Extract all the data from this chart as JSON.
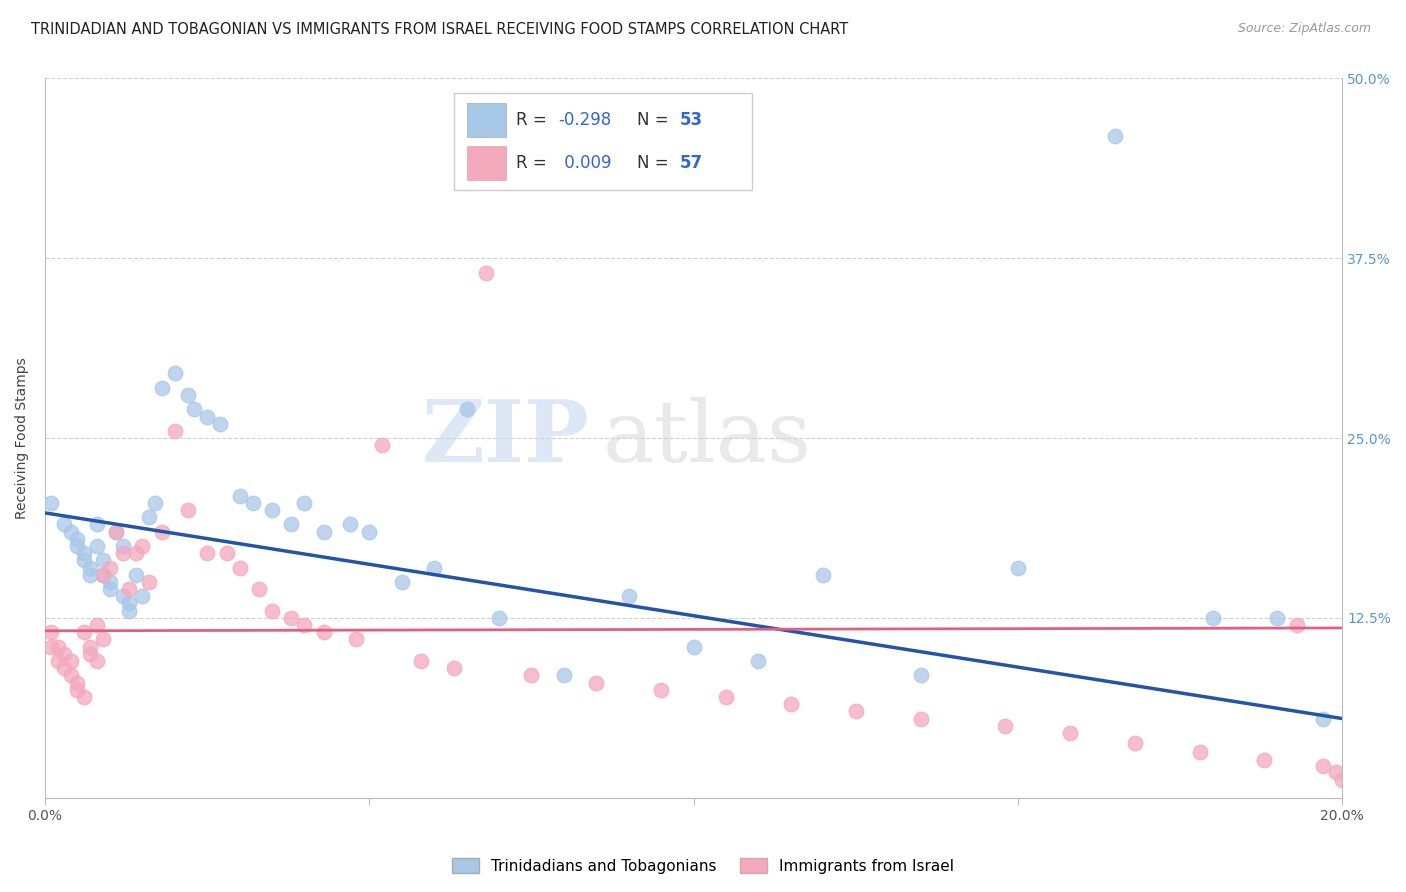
{
  "title": "TRINIDADIAN AND TOBAGONIAN VS IMMIGRANTS FROM ISRAEL RECEIVING FOOD STAMPS CORRELATION CHART",
  "source": "Source: ZipAtlas.com",
  "ylabel": "Receiving Food Stamps",
  "xlim": [
    0.0,
    0.2
  ],
  "ylim": [
    0.0,
    0.5
  ],
  "xticks": [
    0.0,
    0.05,
    0.1,
    0.15,
    0.2
  ],
  "xticklabels": [
    "0.0%",
    "",
    "",
    "",
    "20.0%"
  ],
  "yticks": [
    0.0,
    0.125,
    0.25,
    0.375,
    0.5
  ],
  "yticklabels_right": [
    "",
    "12.5%",
    "25.0%",
    "37.5%",
    "50.0%"
  ],
  "blue_color": "#a8c8e8",
  "pink_color": "#f4a8bc",
  "line_blue": "#2255aa",
  "line_pink": "#e06080",
  "watermark_zip": "ZIP",
  "watermark_atlas": "atlas",
  "blue_scatter_x": [
    0.001,
    0.003,
    0.004,
    0.005,
    0.005,
    0.006,
    0.006,
    0.007,
    0.007,
    0.008,
    0.008,
    0.009,
    0.009,
    0.01,
    0.01,
    0.011,
    0.012,
    0.012,
    0.013,
    0.013,
    0.014,
    0.015,
    0.016,
    0.017,
    0.018,
    0.02,
    0.022,
    0.023,
    0.025,
    0.027,
    0.03,
    0.032,
    0.035,
    0.038,
    0.04,
    0.043,
    0.047,
    0.05,
    0.055,
    0.06,
    0.065,
    0.07,
    0.08,
    0.09,
    0.1,
    0.11,
    0.12,
    0.135,
    0.15,
    0.165,
    0.18,
    0.19,
    0.197
  ],
  "blue_scatter_y": [
    0.205,
    0.19,
    0.185,
    0.18,
    0.175,
    0.17,
    0.165,
    0.16,
    0.155,
    0.19,
    0.175,
    0.165,
    0.155,
    0.15,
    0.145,
    0.185,
    0.175,
    0.14,
    0.135,
    0.13,
    0.155,
    0.14,
    0.195,
    0.205,
    0.285,
    0.295,
    0.28,
    0.27,
    0.265,
    0.26,
    0.21,
    0.205,
    0.2,
    0.19,
    0.205,
    0.185,
    0.19,
    0.185,
    0.15,
    0.16,
    0.27,
    0.125,
    0.085,
    0.14,
    0.105,
    0.095,
    0.155,
    0.085,
    0.16,
    0.46,
    0.125,
    0.125,
    0.055
  ],
  "pink_scatter_x": [
    0.001,
    0.001,
    0.002,
    0.002,
    0.003,
    0.003,
    0.004,
    0.004,
    0.005,
    0.005,
    0.006,
    0.006,
    0.007,
    0.007,
    0.008,
    0.008,
    0.009,
    0.009,
    0.01,
    0.011,
    0.012,
    0.013,
    0.014,
    0.015,
    0.016,
    0.018,
    0.02,
    0.022,
    0.025,
    0.028,
    0.03,
    0.033,
    0.035,
    0.038,
    0.04,
    0.043,
    0.048,
    0.052,
    0.058,
    0.063,
    0.068,
    0.075,
    0.085,
    0.095,
    0.105,
    0.115,
    0.125,
    0.135,
    0.148,
    0.158,
    0.168,
    0.178,
    0.188,
    0.193,
    0.197,
    0.199,
    0.2
  ],
  "pink_scatter_y": [
    0.115,
    0.105,
    0.105,
    0.095,
    0.1,
    0.09,
    0.095,
    0.085,
    0.08,
    0.075,
    0.07,
    0.115,
    0.105,
    0.1,
    0.095,
    0.12,
    0.11,
    0.155,
    0.16,
    0.185,
    0.17,
    0.145,
    0.17,
    0.175,
    0.15,
    0.185,
    0.255,
    0.2,
    0.17,
    0.17,
    0.16,
    0.145,
    0.13,
    0.125,
    0.12,
    0.115,
    0.11,
    0.245,
    0.095,
    0.09,
    0.365,
    0.085,
    0.08,
    0.075,
    0.07,
    0.065,
    0.06,
    0.055,
    0.05,
    0.045,
    0.038,
    0.032,
    0.026,
    0.12,
    0.022,
    0.018,
    0.012
  ],
  "blue_line_x0": 0.0,
  "blue_line_y0": 0.198,
  "blue_line_x1": 0.2,
  "blue_line_y1": 0.055,
  "pink_line_x0": 0.0,
  "pink_line_y0": 0.116,
  "pink_line_x1": 0.2,
  "pink_line_y1": 0.118,
  "title_fontsize": 10.5,
  "axis_label_fontsize": 10,
  "tick_fontsize": 10,
  "legend_fontsize": 12,
  "legend_r1_text": "R = ",
  "legend_r1_val": "-0.298",
  "legend_n1_text": "N = ",
  "legend_n1_val": "53",
  "legend_r2_text": "R = ",
  "legend_r2_val": " 0.009",
  "legend_n2_text": "N = ",
  "legend_n2_val": "57",
  "legend_text_color": "#333333",
  "legend_val_color": "#3366cc",
  "tick_color": "#5599cc"
}
